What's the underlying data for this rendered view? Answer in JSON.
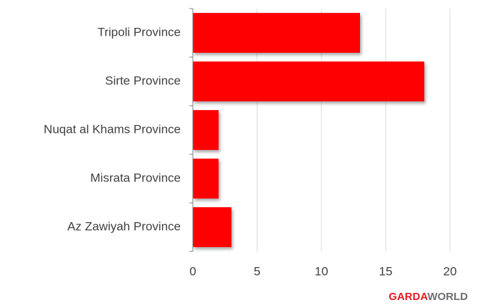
{
  "chart_data": {
    "type": "bar",
    "orientation": "horizontal",
    "categories": [
      "Tripoli Province",
      "Sirte Province",
      "Nuqat al Khams Province",
      "Misrata Province",
      "Az Zawiyah Province"
    ],
    "values": [
      13,
      18,
      2,
      2,
      3
    ],
    "color": "#ff0000",
    "xlim": [
      0,
      20
    ],
    "xticks": [
      0,
      5,
      10,
      15,
      20
    ],
    "grid": true
  },
  "logo": {
    "left": "GARDA",
    "right": "WORLD"
  }
}
